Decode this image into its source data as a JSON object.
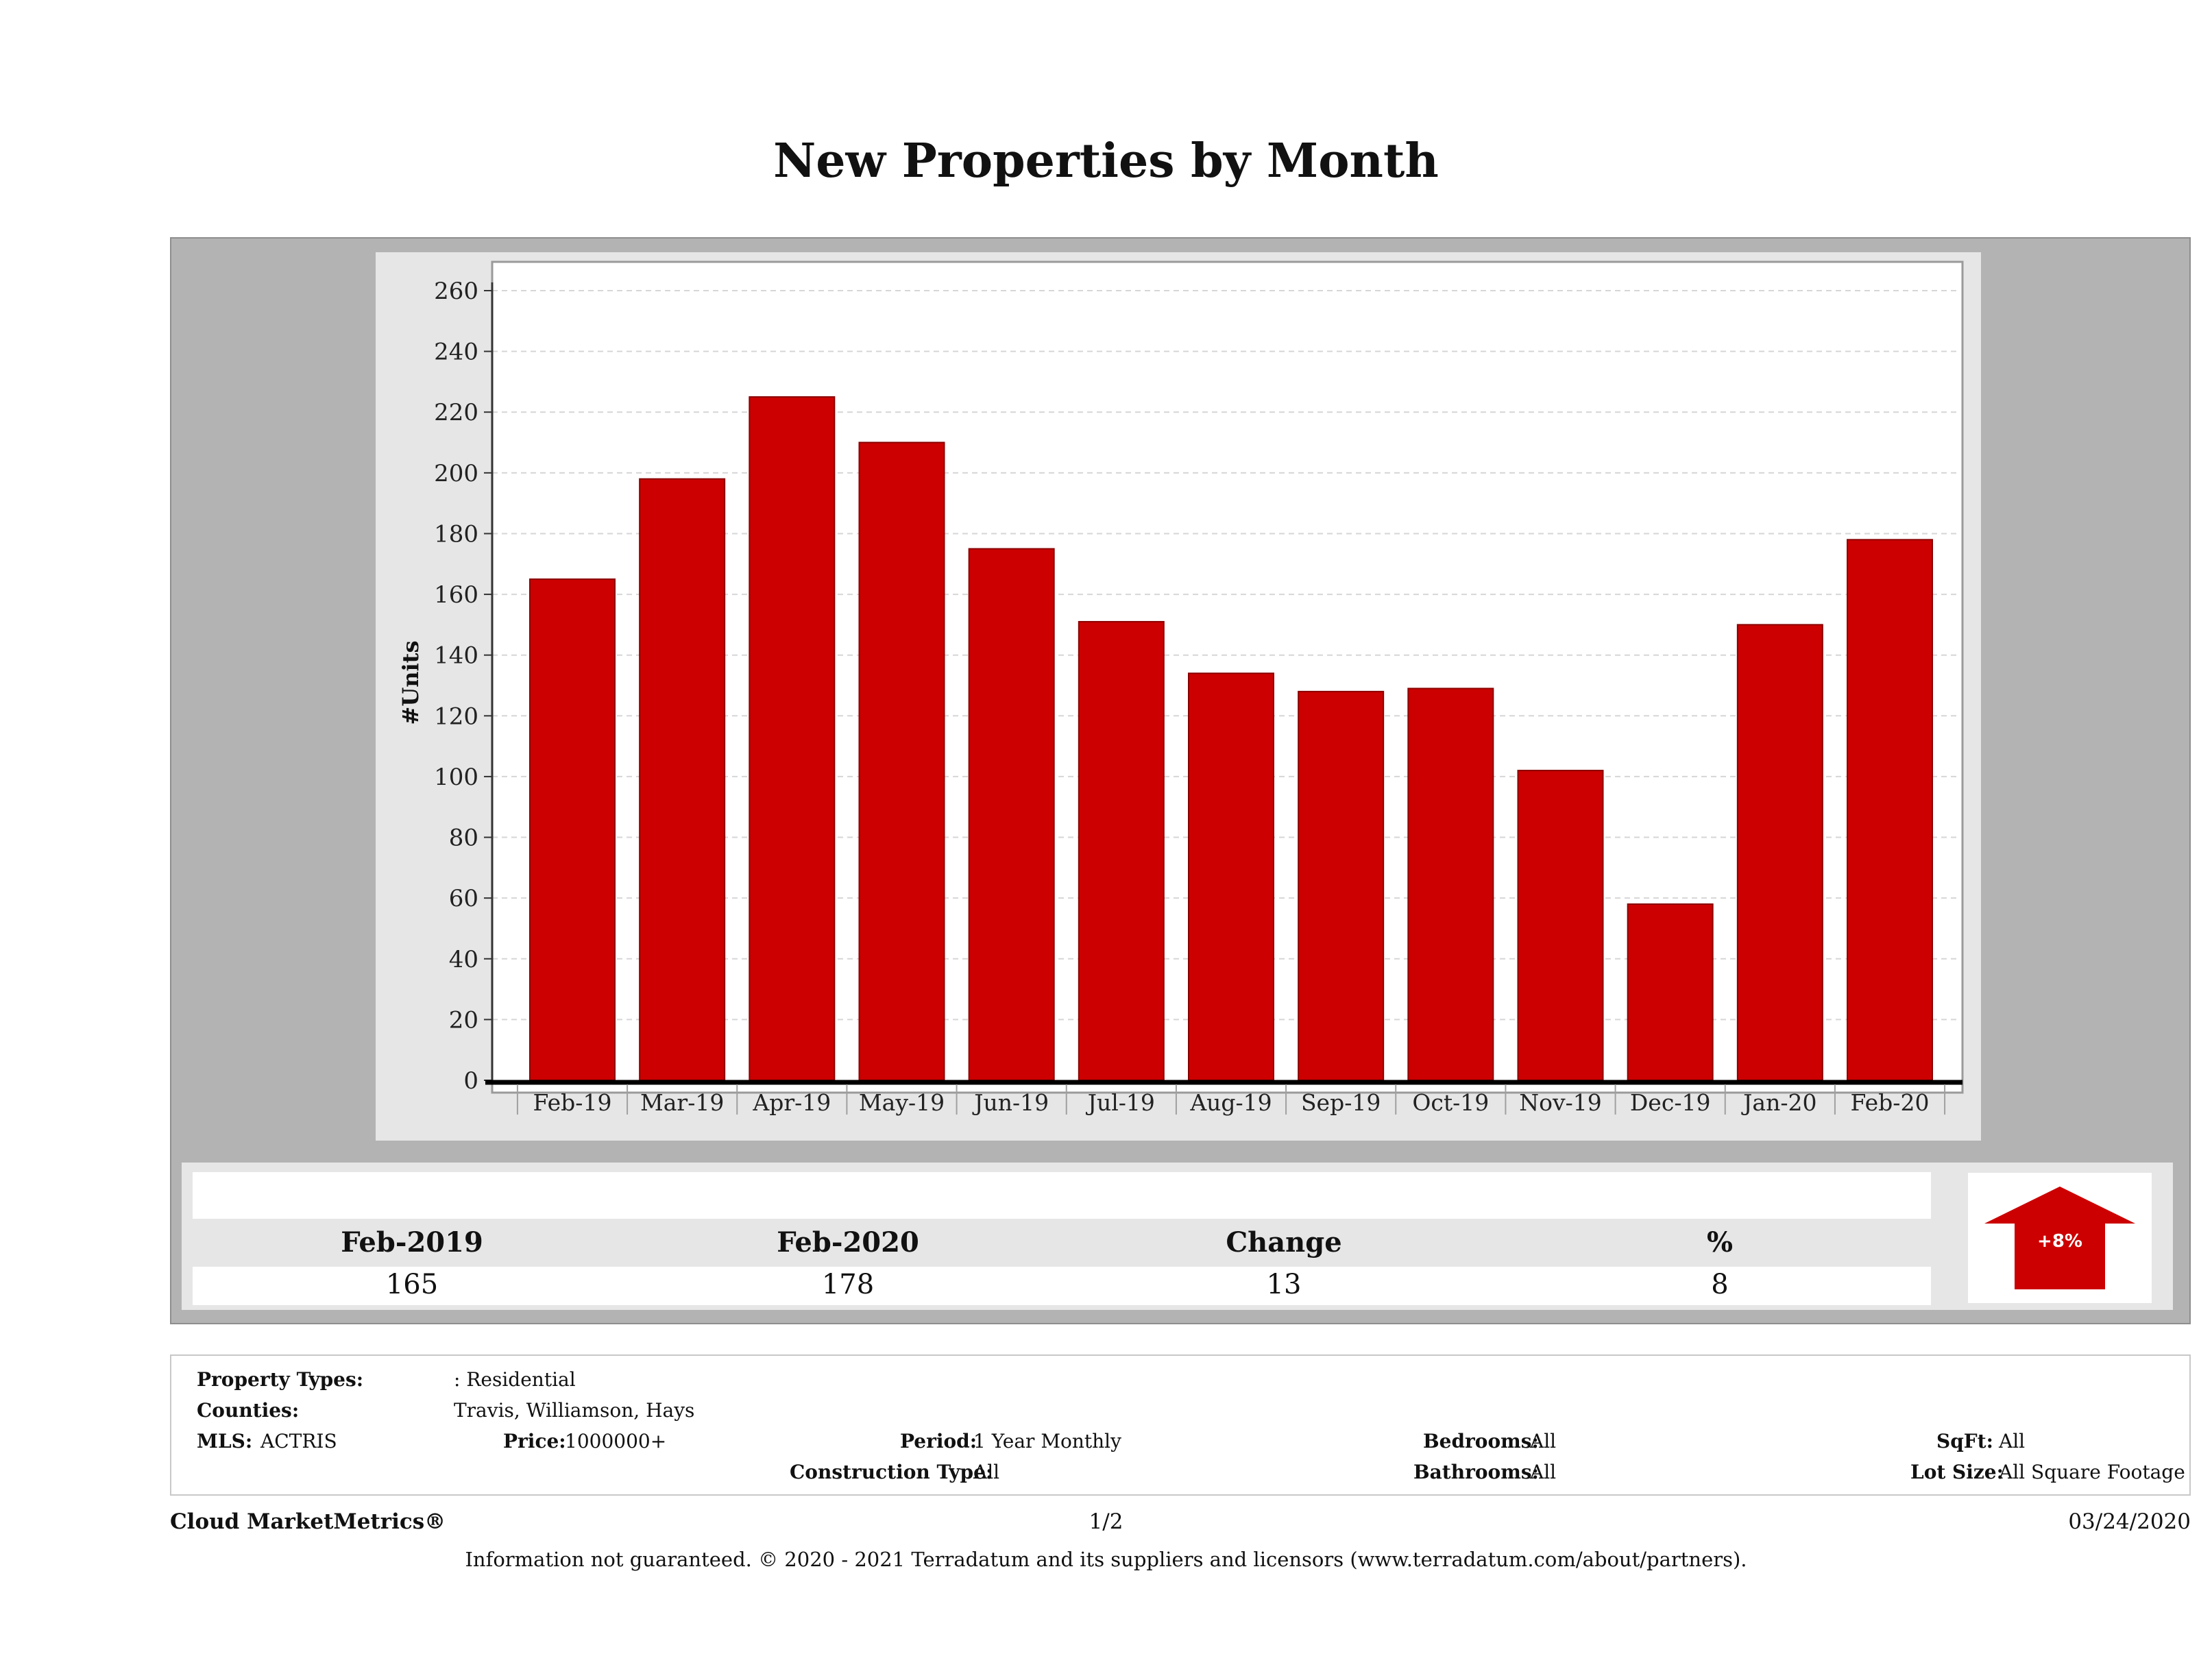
{
  "page": {
    "title": "New Properties by Month"
  },
  "chart_data": {
    "type": "bar",
    "title": "New Properties by Month",
    "ylabel": "#Units",
    "xlabel": "",
    "categories": [
      "Feb-19",
      "Mar-19",
      "Apr-19",
      "May-19",
      "Jun-19",
      "Jul-19",
      "Aug-19",
      "Sep-19",
      "Oct-19",
      "Nov-19",
      "Dec-19",
      "Jan-20",
      "Feb-20"
    ],
    "values": [
      165,
      198,
      225,
      210,
      175,
      151,
      134,
      128,
      129,
      102,
      58,
      150,
      178
    ],
    "ylim": [
      0,
      265
    ],
    "yticks": [
      0,
      20,
      40,
      60,
      80,
      100,
      120,
      140,
      160,
      180,
      200,
      220,
      240,
      260
    ],
    "bar_color": "#cc0000",
    "grid": true,
    "legend": "none"
  },
  "summary": {
    "headers": [
      "Feb-2019",
      "Feb-2020",
      "Change",
      "%"
    ],
    "values": [
      "165",
      "178",
      "13",
      "8"
    ],
    "badge": "+8%",
    "badge_color": "#cc0000",
    "badge_icon": "up-arrow-icon"
  },
  "info": {
    "property_types_label": "Property Types:",
    "property_types_value": ": Residential",
    "counties_label": "Counties:",
    "counties_value": "Travis, Williamson, Hays",
    "mls_label": "MLS:",
    "mls_value": "ACTRIS",
    "price_label": "Price:",
    "price_value": "1000000+",
    "period_label": "Period:",
    "period_value": "1 Year Monthly",
    "construction_label": "Construction Type:",
    "construction_value": "All",
    "bedrooms_label": "Bedrooms:",
    "bedrooms_value": "All",
    "bathrooms_label": "Bathrooms:",
    "bathrooms_value": "All",
    "sqft_label": "SqFt:",
    "sqft_value": "All",
    "lotsize_label": "Lot Size:",
    "lotsize_value": "All Square Footage"
  },
  "footer": {
    "brand": "Cloud MarketMetrics®",
    "page_number": "1/2",
    "date": "03/24/2020",
    "disclaimer": "Information not guaranteed. © 2020 - 2021 Terradatum and its suppliers and licensors (www.terradatum.com/about/partners)."
  }
}
